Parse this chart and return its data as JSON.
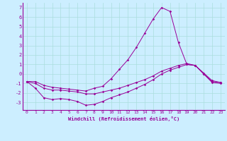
{
  "xlabel": "Windchill (Refroidissement éolien,°C)",
  "xlim": [
    -0.5,
    23.5
  ],
  "ylim": [
    -3.8,
    7.5
  ],
  "yticks": [
    -3,
    -2,
    -1,
    0,
    1,
    2,
    3,
    4,
    5,
    6,
    7
  ],
  "xticks": [
    0,
    1,
    2,
    3,
    4,
    5,
    6,
    7,
    8,
    9,
    10,
    11,
    12,
    13,
    14,
    15,
    16,
    17,
    18,
    19,
    20,
    21,
    22,
    23
  ],
  "bg_color": "#cceeff",
  "grid_color": "#aadddd",
  "line_color": "#990099",
  "line1_x": [
    0,
    1,
    2,
    3,
    4,
    5,
    6,
    7,
    8,
    9,
    10,
    11,
    12,
    13,
    14,
    15,
    16,
    17,
    18,
    19,
    20,
    21,
    22,
    23
  ],
  "line1_y": [
    -0.8,
    -1.5,
    -2.5,
    -2.7,
    -2.6,
    -2.7,
    -2.9,
    -3.3,
    -3.2,
    -2.9,
    -2.5,
    -2.2,
    -1.9,
    -1.5,
    -1.1,
    -0.6,
    0.0,
    0.4,
    0.7,
    1.0,
    0.9,
    0.0,
    -0.9,
    -1.0
  ],
  "line2_x": [
    0,
    1,
    2,
    3,
    4,
    5,
    6,
    7,
    8,
    9,
    10,
    11,
    12,
    13,
    14,
    15,
    16,
    17,
    18,
    19,
    20,
    21,
    22,
    23
  ],
  "line2_y": [
    -0.8,
    -1.0,
    -1.5,
    -1.7,
    -1.7,
    -1.8,
    -1.9,
    -2.1,
    -2.1,
    -1.9,
    -1.7,
    -1.5,
    -1.2,
    -0.9,
    -0.6,
    -0.2,
    0.3,
    0.6,
    0.9,
    1.1,
    0.9,
    0.1,
    -0.7,
    -0.9
  ],
  "line3_x": [
    0,
    1,
    2,
    3,
    4,
    5,
    6,
    7,
    8,
    9,
    10,
    11,
    12,
    13,
    14,
    15,
    16,
    17,
    18,
    19,
    20,
    21,
    22,
    23
  ],
  "line3_y": [
    -0.8,
    -0.8,
    -1.2,
    -1.4,
    -1.5,
    -1.6,
    -1.7,
    -1.8,
    -1.5,
    -1.3,
    -0.5,
    0.5,
    1.5,
    2.8,
    4.3,
    5.8,
    7.0,
    6.6,
    3.3,
    1.0,
    0.9,
    0.0,
    -0.8,
    -0.9
  ]
}
